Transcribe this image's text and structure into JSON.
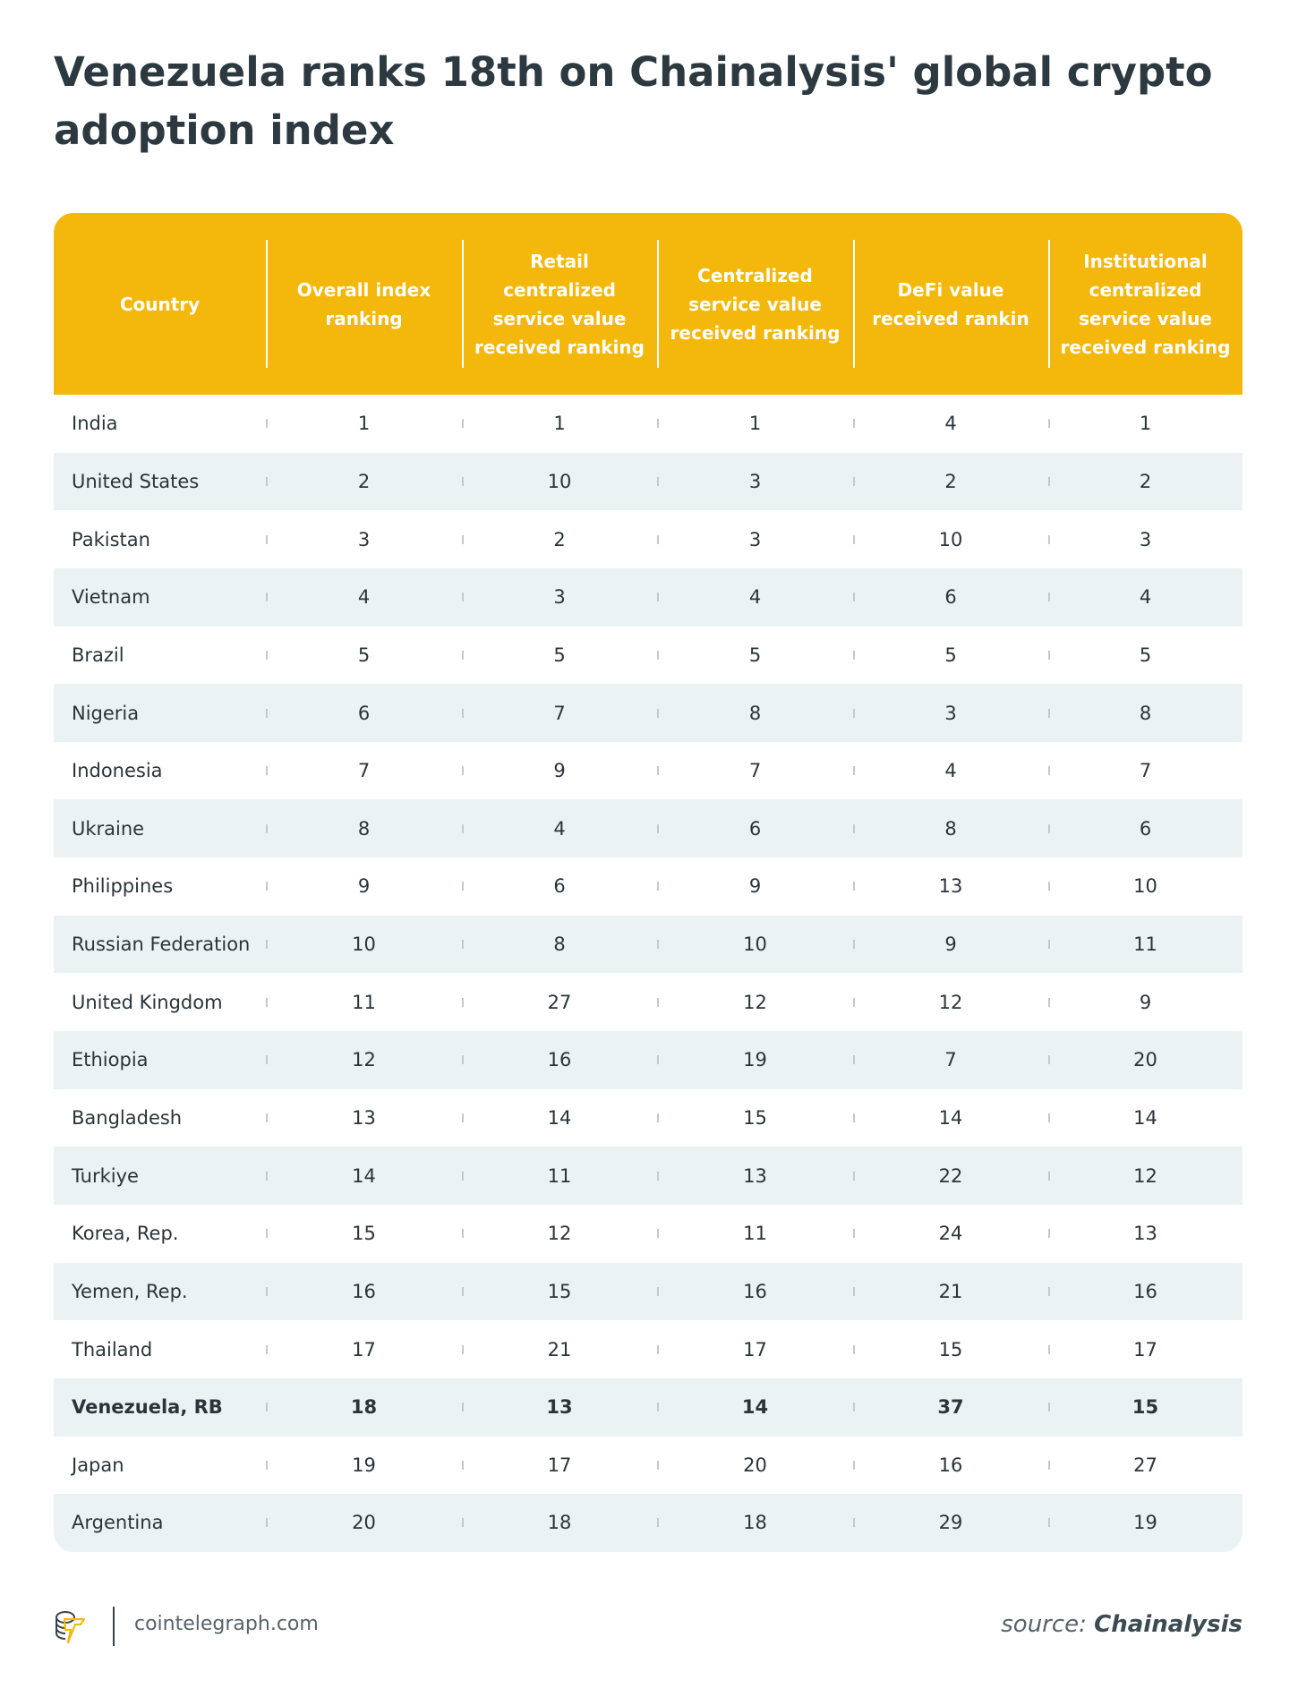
{
  "title": "Venezuela ranks 18th on Chainalysis' global crypto adoption index",
  "columns": [
    "Country",
    "Overall index ranking",
    "Retail centralized service value received ranking",
    "Centralized service value received ranking",
    "DeFi value received rankin",
    "Institutional centralized service value received ranking"
  ],
  "rows": [
    [
      "India",
      "1",
      "1",
      "1",
      "4",
      "1"
    ],
    [
      "United States",
      "2",
      "10",
      "3",
      "2",
      "2"
    ],
    [
      "Pakistan",
      "3",
      "2",
      "3",
      "10",
      "3"
    ],
    [
      "Vietnam",
      "4",
      "3",
      "4",
      "6",
      "4"
    ],
    [
      "Brazil",
      "5",
      "5",
      "5",
      "5",
      "5"
    ],
    [
      "Nigeria",
      "6",
      "7",
      "8",
      "3",
      "8"
    ],
    [
      "Indonesia",
      "7",
      "9",
      "7",
      "4",
      "7"
    ],
    [
      "Ukraine",
      "8",
      "4",
      "6",
      "8",
      "6"
    ],
    [
      "Philippines",
      "9",
      "6",
      "9",
      "13",
      "10"
    ],
    [
      "Russian Federation",
      "10",
      "8",
      "10",
      "9",
      "11"
    ],
    [
      "United Kingdom",
      "11",
      "27",
      "12",
      "12",
      "9"
    ],
    [
      "Ethiopia",
      "12",
      "16",
      "19",
      "7",
      "20"
    ],
    [
      "Bangladesh",
      "13",
      "14",
      "15",
      "14",
      "14"
    ],
    [
      "Turkiye",
      "14",
      "11",
      "13",
      "22",
      "12"
    ],
    [
      "Korea, Rep.",
      "15",
      "12",
      "11",
      "24",
      "13"
    ],
    [
      "Yemen, Rep.",
      "16",
      "15",
      "16",
      "21",
      "16"
    ],
    [
      "Thailand",
      "17",
      "21",
      "17",
      "15",
      "17"
    ],
    [
      "Venezuela, RB",
      "18",
      "13",
      "14",
      "37",
      "15"
    ],
    [
      "Japan",
      "19",
      "17",
      "20",
      "16",
      "27"
    ],
    [
      "Argentina",
      "20",
      "18",
      "18",
      "29",
      "19"
    ]
  ],
  "highlight_row": "Venezuela, RB",
  "footer": {
    "site": "cointelegraph.com",
    "source_label": "source:",
    "source_name": "Chainalysis"
  },
  "colors": {
    "header": "#f4b70c",
    "stripe": "#ebf2f3",
    "text": "#2b3439"
  }
}
